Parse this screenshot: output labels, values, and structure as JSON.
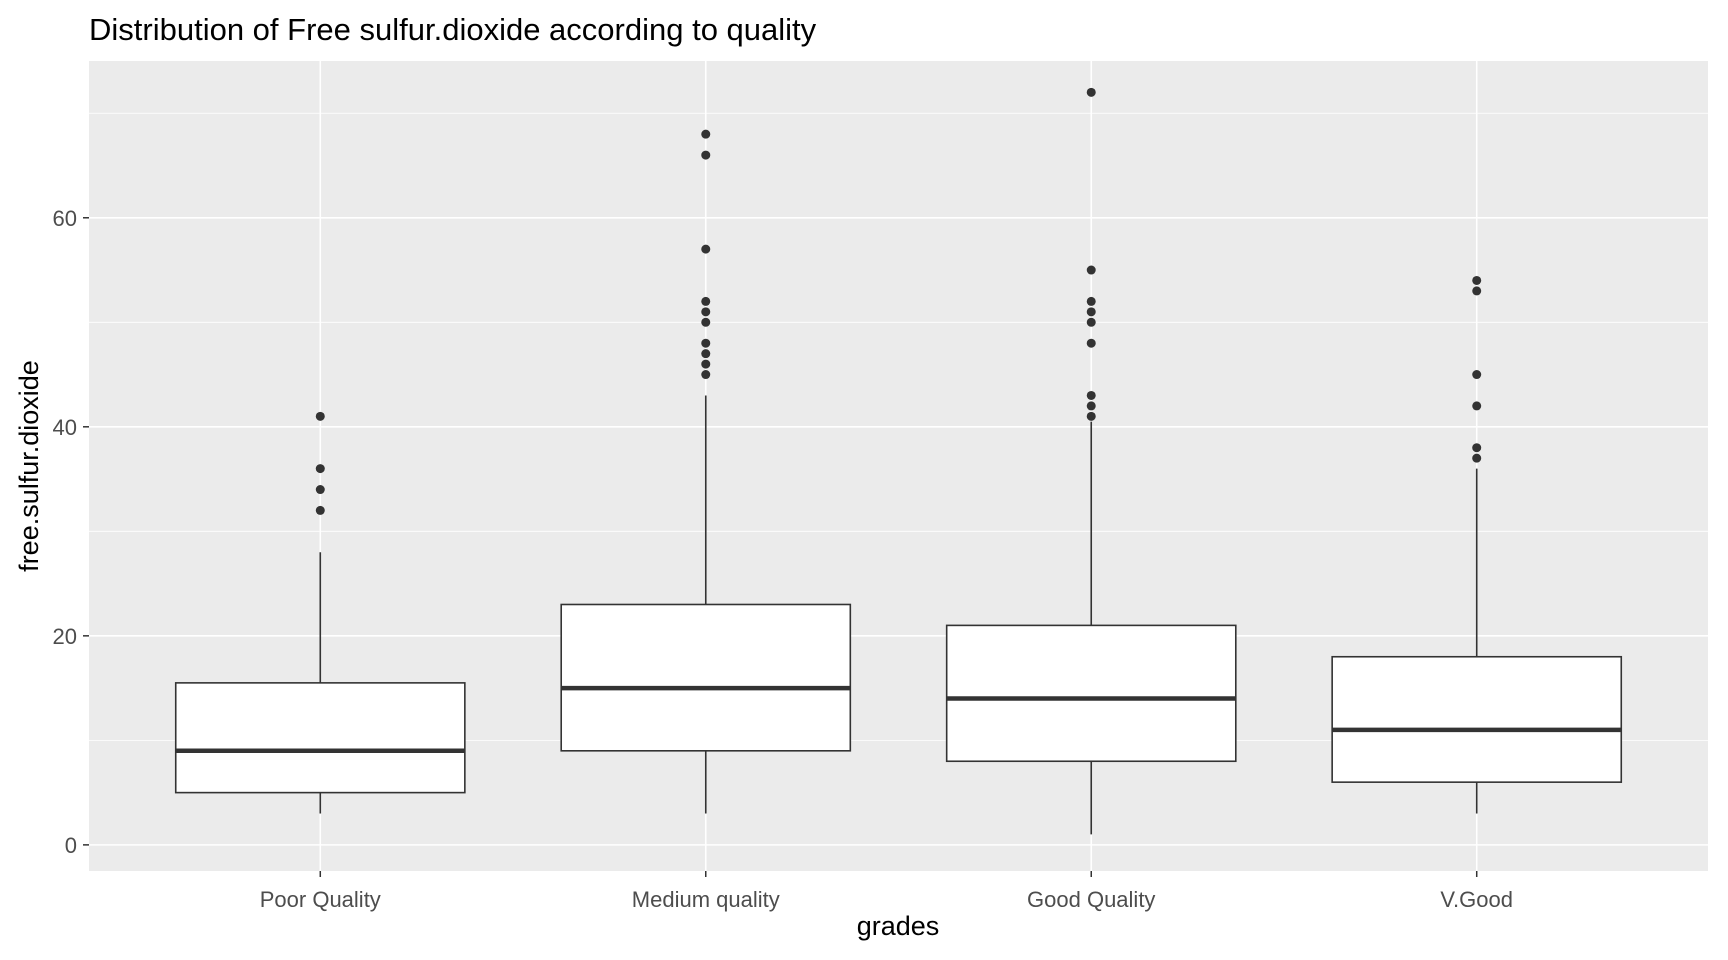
{
  "chart_data": {
    "type": "boxplot",
    "title": "Distribution of Free sulfur.dioxide according to quality",
    "xlabel": "grades",
    "ylabel": "free.sulfur.dioxide",
    "ylim": [
      -2.5,
      75
    ],
    "yticks": [
      0,
      20,
      40,
      60
    ],
    "grid": true,
    "colors": {
      "panel": "#ebebeb",
      "grid": "#ffffff",
      "box_fill": "#ffffff",
      "box_line": "#333333",
      "outlier": "#333333"
    },
    "categories": [
      "Poor Quality",
      "Medium quality",
      "Good Quality",
      "V.Good"
    ],
    "boxes": [
      {
        "category": "Poor Quality",
        "whisker_low": 3,
        "q1": 5,
        "median": 9,
        "q3": 15.5,
        "whisker_high": 28,
        "outliers": [
          32,
          34,
          36,
          41
        ]
      },
      {
        "category": "Medium quality",
        "whisker_low": 3,
        "q1": 9,
        "median": 15,
        "q3": 23,
        "whisker_high": 43,
        "outliers": [
          45,
          46,
          47,
          48,
          50,
          51,
          52,
          57,
          66,
          68
        ]
      },
      {
        "category": "Good Quality",
        "whisker_low": 1,
        "q1": 8,
        "median": 14,
        "q3": 21,
        "whisker_high": 40.5,
        "outliers": [
          41,
          42,
          43,
          48,
          50,
          51,
          52,
          55,
          72
        ]
      },
      {
        "category": "V.Good",
        "whisker_low": 3,
        "q1": 6,
        "median": 11,
        "q3": 18,
        "whisker_high": 36,
        "outliers": [
          37,
          38,
          42,
          45,
          53,
          54
        ]
      }
    ]
  }
}
